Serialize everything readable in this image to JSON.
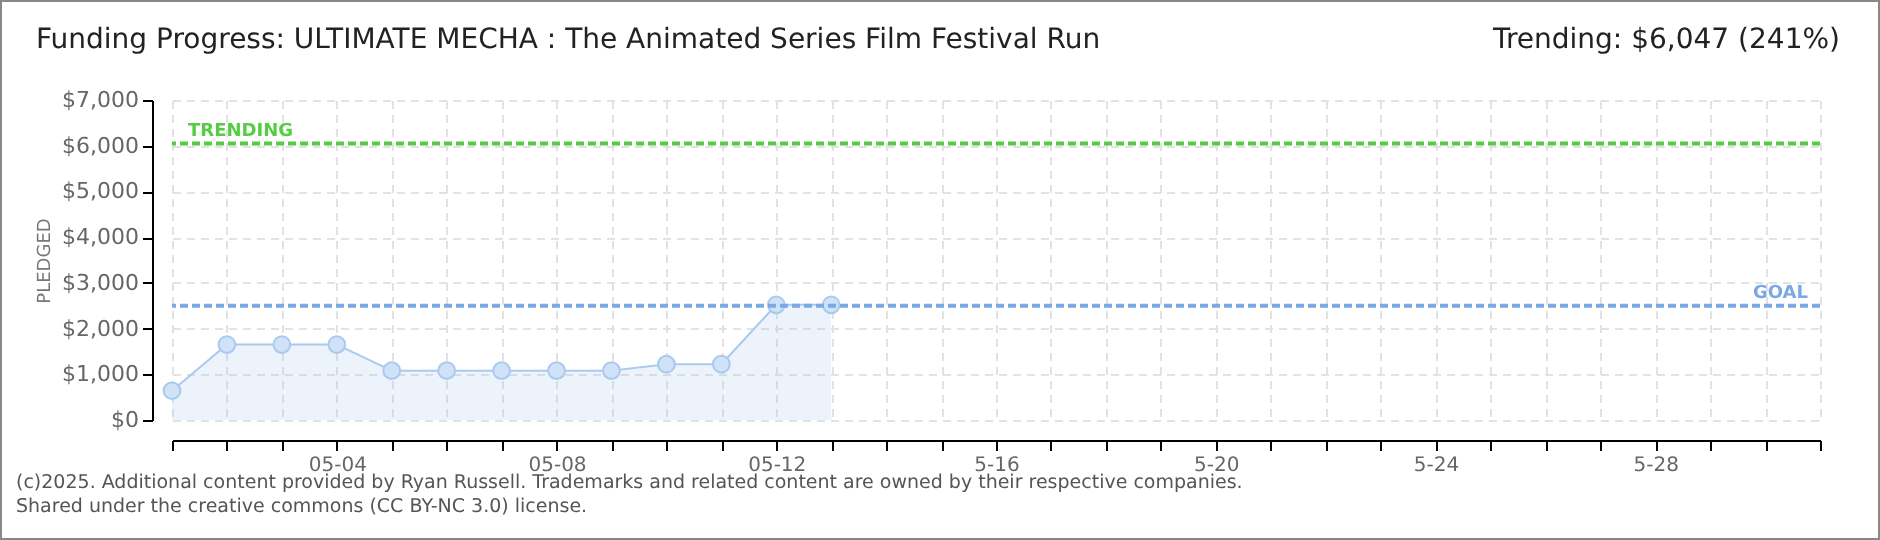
{
  "chart_data": {
    "type": "area",
    "title": "Funding Progress: ULTIMATE MECHA : The Animated Series Film Festival Run",
    "subtitle": "Trending:  $6,047 (241%)",
    "ylabel": "PLEDGED",
    "x": [
      "2025-05-01",
      "2025-05-02",
      "2025-05-03",
      "2025-05-04",
      "2025-05-05",
      "2025-05-06",
      "2025-05-07",
      "2025-05-08",
      "2025-05-09",
      "2025-05-10",
      "2025-05-11",
      "2025-05-12",
      "2025-05-13"
    ],
    "series": [
      {
        "color": "#a9c9ef",
        "values": [
          640,
          1650,
          1650,
          1650,
          1080,
          1080,
          1080,
          1080,
          1080,
          1220,
          1220,
          2520,
          2520
        ]
      }
    ],
    "xlim": [
      "2025-05-01",
      "2025-05-31"
    ],
    "xticks": [
      {
        "value": "2025-05-01",
        "label": null
      },
      {
        "value": "2025-05-02",
        "label": null
      },
      {
        "value": "2025-05-03",
        "label": null
      },
      {
        "value": "2025-05-04",
        "label": "05-04"
      },
      {
        "value": "2025-05-05",
        "label": null
      },
      {
        "value": "2025-05-06",
        "label": null
      },
      {
        "value": "2025-05-07",
        "label": null
      },
      {
        "value": "2025-05-08",
        "label": "05-08"
      },
      {
        "value": "2025-05-09",
        "label": null
      },
      {
        "value": "2025-05-10",
        "label": null
      },
      {
        "value": "2025-05-11",
        "label": null
      },
      {
        "value": "2025-05-12",
        "label": "05-12"
      },
      {
        "value": "2025-05-13",
        "label": null
      },
      {
        "value": "2025-05-14",
        "label": null
      },
      {
        "value": "2025-05-15",
        "label": null
      },
      {
        "value": "2025-05-16",
        "label": "5-16"
      },
      {
        "value": "2025-05-17",
        "label": null
      },
      {
        "value": "2025-05-18",
        "label": null
      },
      {
        "value": "2025-05-19",
        "label": null
      },
      {
        "value": "2025-05-20",
        "label": "5-20"
      },
      {
        "value": "2025-05-21",
        "label": null
      },
      {
        "value": "2025-05-22",
        "label": null
      },
      {
        "value": "2025-05-23",
        "label": null
      },
      {
        "value": "2025-05-24",
        "label": "5-24"
      },
      {
        "value": "2025-05-25",
        "label": null
      },
      {
        "value": "2025-05-26",
        "label": null
      },
      {
        "value": "2025-05-27",
        "label": null
      },
      {
        "value": "2025-05-28",
        "label": "5-28"
      },
      {
        "value": "2025-05-29",
        "label": null
      },
      {
        "value": "2025-05-30",
        "label": null
      },
      {
        "value": "2025-05-31",
        "label": null
      }
    ],
    "ylim": [
      0,
      7000
    ],
    "yticks": [
      {
        "value": 0,
        "label": "$0"
      },
      {
        "value": 1000,
        "label": "$1,000"
      },
      {
        "value": 2000,
        "label": "$2,000"
      },
      {
        "value": 3000,
        "label": "$3,000"
      },
      {
        "value": 4000,
        "label": "$4,000"
      },
      {
        "value": 5000,
        "label": "$5,000"
      },
      {
        "value": 6000,
        "label": "$6,000"
      },
      {
        "value": 7000,
        "label": "$7,000"
      }
    ],
    "ref_lines": [
      {
        "axis": "y",
        "value": 6047,
        "label": "TRENDING",
        "color": "#55cc44",
        "line_style": "dashed"
      },
      {
        "axis": "y",
        "value": 2500,
        "label": "GOAL",
        "color": "#7aa9e6",
        "line_style": "dashed"
      }
    ],
    "grid": true,
    "marker": "circle",
    "line_style": "solid",
    "annotations": [
      "(c)2025. Additional content provided by Ryan Russell. Trademarks and related content are owned by their respective companies.",
      "Shared under the creative commons (CC BY-NC 3.0) license."
    ]
  }
}
